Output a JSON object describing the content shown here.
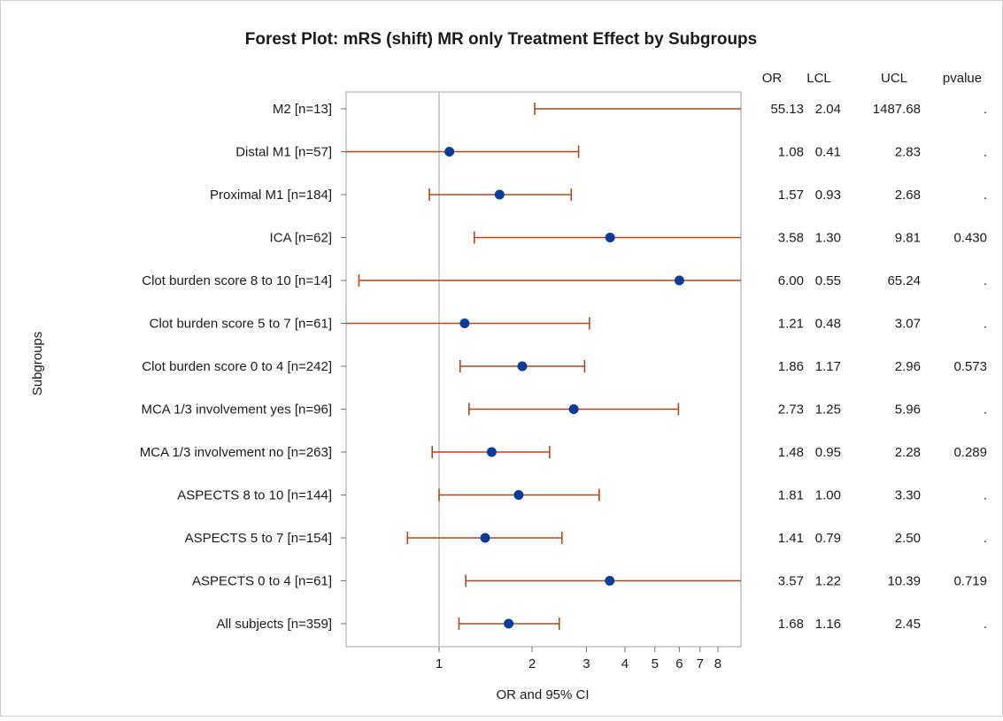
{
  "chart_data": {
    "type": "forest",
    "title": "Forest Plot: mRS (shift) MR only Treatment Effect by Subgroups",
    "xlabel": "OR and 95% CI",
    "ylabel": "Subgroups",
    "x_scale": "log",
    "xlim": [
      0.5,
      9.5
    ],
    "x_ticks": [
      1,
      2,
      3,
      4,
      5,
      6,
      7,
      8
    ],
    "reference_line": 1,
    "columns": [
      "OR",
      "LCL",
      "UCL",
      "pvalue"
    ],
    "point_color": "#0b3c9c",
    "ci_color": "#b5461b",
    "rows": [
      {
        "label": "M2 [n=13]",
        "or": 55.13,
        "lcl": 2.04,
        "ucl": 1487.68,
        "or_text": "55.13",
        "lcl_text": "2.04",
        "ucl_text": "1487.68",
        "pvalue": "."
      },
      {
        "label": "Distal M1 [n=57]",
        "or": 1.08,
        "lcl": 0.41,
        "ucl": 2.83,
        "or_text": "1.08",
        "lcl_text": "0.41",
        "ucl_text": "2.83",
        "pvalue": "."
      },
      {
        "label": "Proximal M1 [n=184]",
        "or": 1.57,
        "lcl": 0.93,
        "ucl": 2.68,
        "or_text": "1.57",
        "lcl_text": "0.93",
        "ucl_text": "2.68",
        "pvalue": "."
      },
      {
        "label": "ICA [n=62]",
        "or": 3.58,
        "lcl": 1.3,
        "ucl": 9.81,
        "or_text": "3.58",
        "lcl_text": "1.30",
        "ucl_text": "9.81",
        "pvalue": "0.430"
      },
      {
        "label": "Clot burden score 8 to 10 [n=14]",
        "or": 6.0,
        "lcl": 0.55,
        "ucl": 65.24,
        "or_text": "6.00",
        "lcl_text": "0.55",
        "ucl_text": "65.24",
        "pvalue": "."
      },
      {
        "label": "Clot burden score 5 to 7 [n=61]",
        "or": 1.21,
        "lcl": 0.48,
        "ucl": 3.07,
        "or_text": "1.21",
        "lcl_text": "0.48",
        "ucl_text": "3.07",
        "pvalue": "."
      },
      {
        "label": "Clot burden score 0 to 4 [n=242]",
        "or": 1.86,
        "lcl": 1.17,
        "ucl": 2.96,
        "or_text": "1.86",
        "lcl_text": "1.17",
        "ucl_text": "2.96",
        "pvalue": "0.573"
      },
      {
        "label": "MCA 1/3 involvement yes [n=96]",
        "or": 2.73,
        "lcl": 1.25,
        "ucl": 5.96,
        "or_text": "2.73",
        "lcl_text": "1.25",
        "ucl_text": "5.96",
        "pvalue": "."
      },
      {
        "label": "MCA 1/3 involvement no [n=263]",
        "or": 1.48,
        "lcl": 0.95,
        "ucl": 2.28,
        "or_text": "1.48",
        "lcl_text": "0.95",
        "ucl_text": "2.28",
        "pvalue": "0.289"
      },
      {
        "label": "ASPECTS 8 to 10 [n=144]",
        "or": 1.81,
        "lcl": 1.0,
        "ucl": 3.3,
        "or_text": "1.81",
        "lcl_text": "1.00",
        "ucl_text": "3.30",
        "pvalue": "."
      },
      {
        "label": "ASPECTS 5 to 7 [n=154]",
        "or": 1.41,
        "lcl": 0.79,
        "ucl": 2.5,
        "or_text": "1.41",
        "lcl_text": "0.79",
        "ucl_text": "2.50",
        "pvalue": "."
      },
      {
        "label": "ASPECTS 0 to 4 [n=61]",
        "or": 3.57,
        "lcl": 1.22,
        "ucl": 10.39,
        "or_text": "3.57",
        "lcl_text": "1.22",
        "ucl_text": "10.39",
        "pvalue": "0.719"
      },
      {
        "label": "All subjects [n=359]",
        "or": 1.68,
        "lcl": 1.16,
        "ucl": 2.45,
        "or_text": "1.68",
        "lcl_text": "1.16",
        "ucl_text": "2.45",
        "pvalue": "."
      }
    ]
  }
}
